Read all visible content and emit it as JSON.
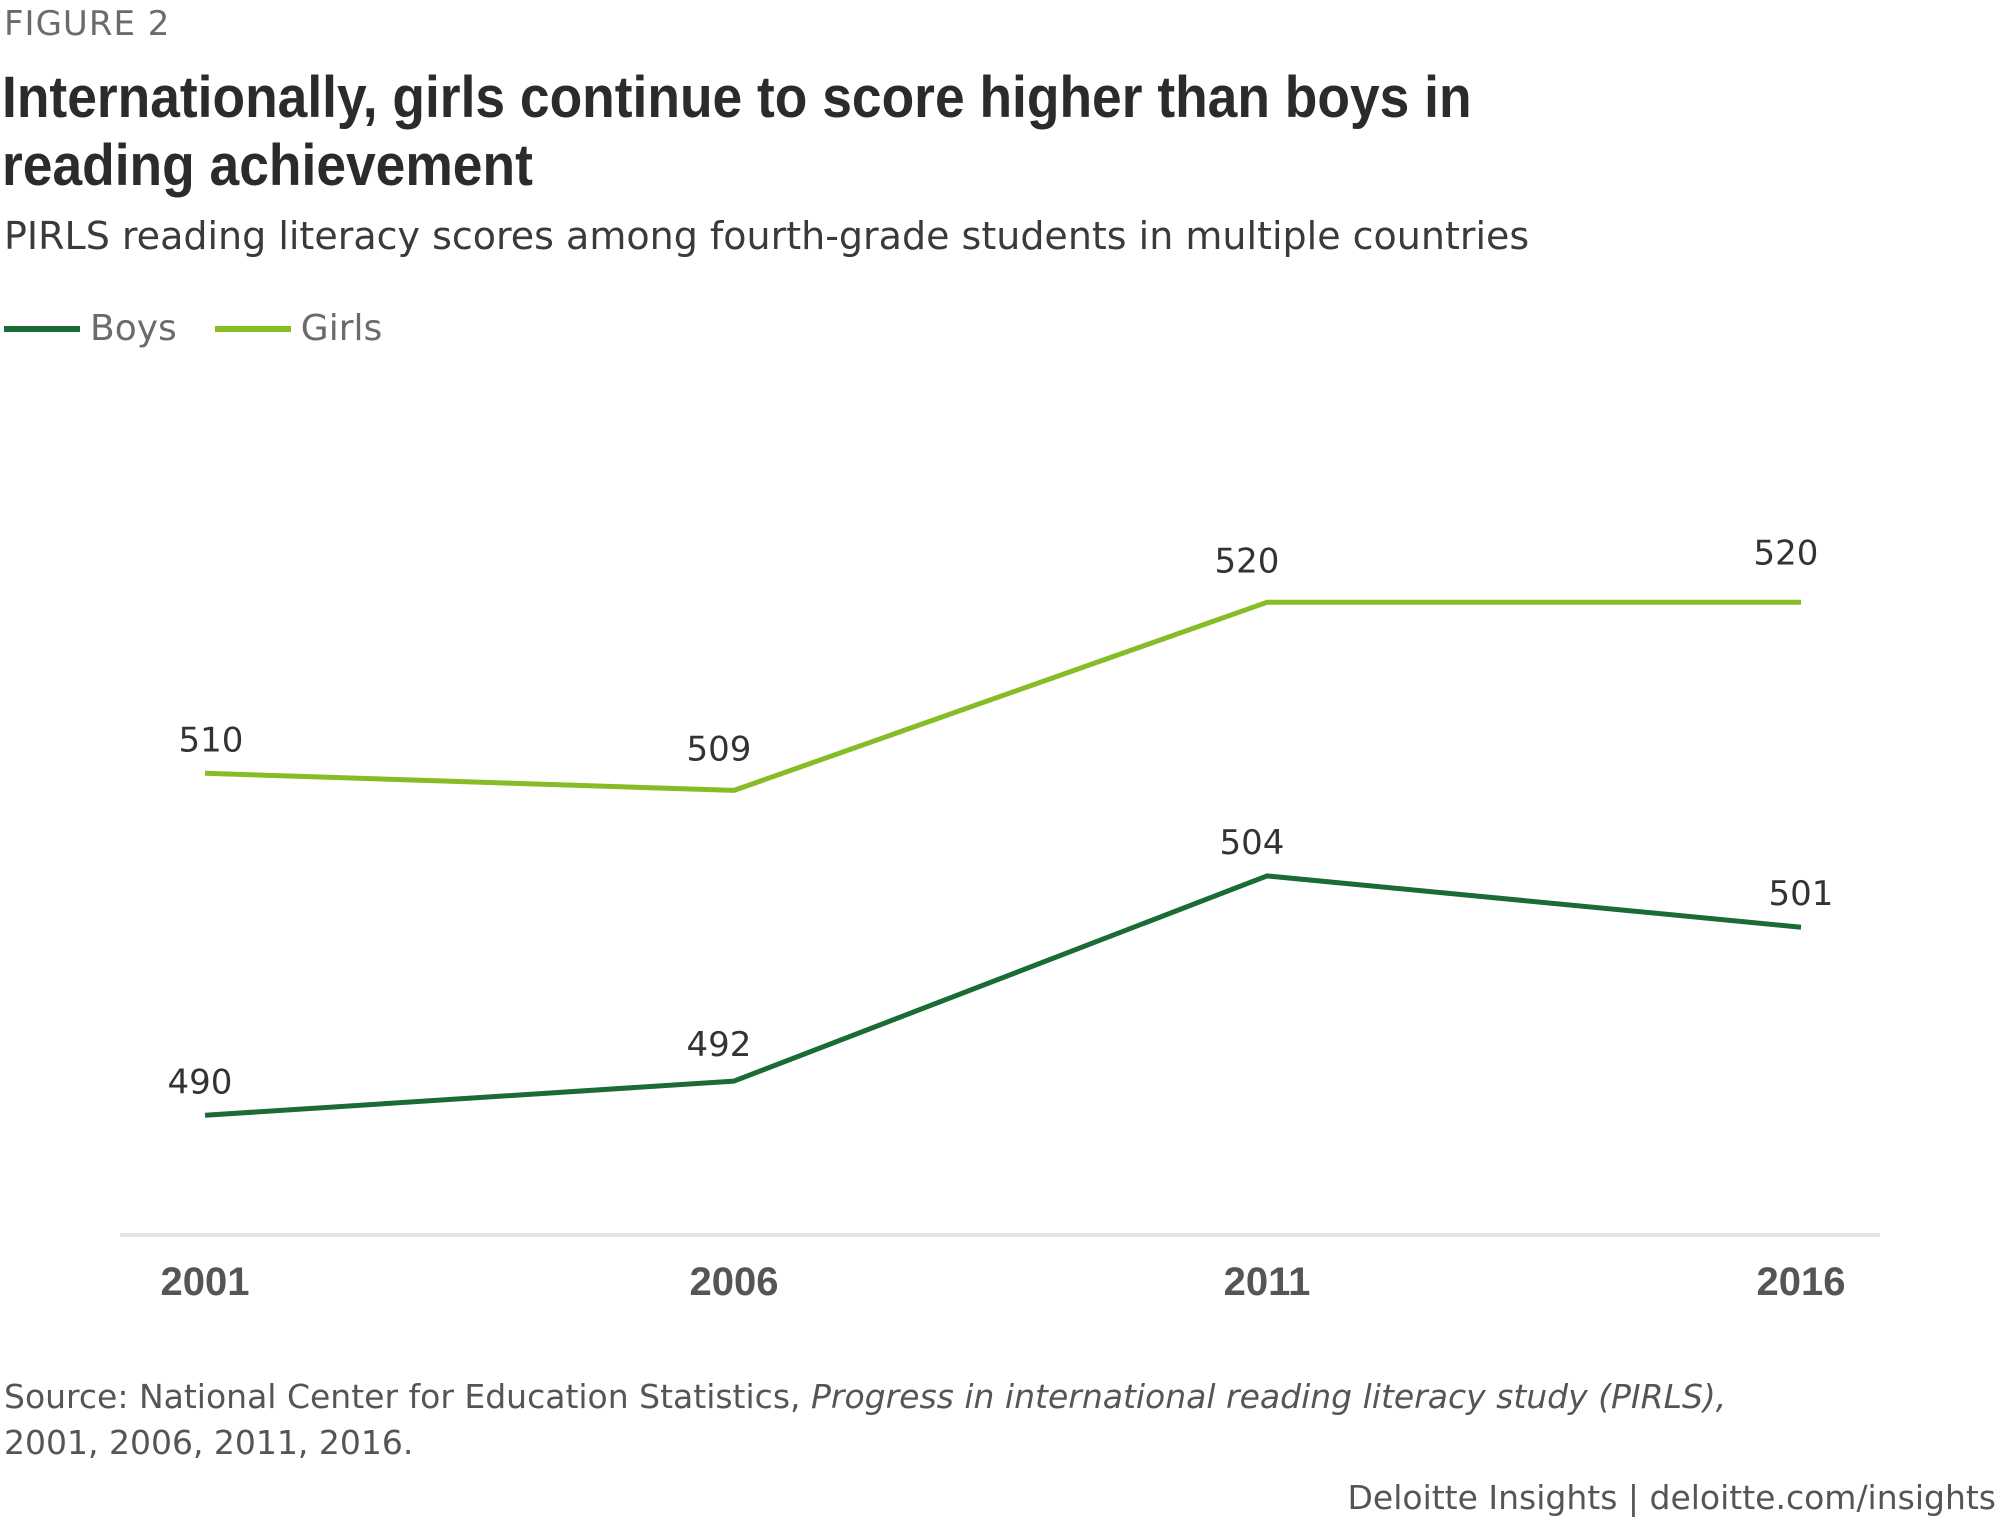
{
  "figure_label": "FIGURE 2",
  "source": {
    "prefix": "Source: National Center for Education Statistics, ",
    "italic": "Progress in international reading literacy study (PIRLS),",
    "suffix": "2001, 2006, 2011, 2016."
  },
  "brand": "Deloitte Insights | deloitte.com/insights",
  "chart_data": {
    "type": "line",
    "title": "Internationally, girls continue to score higher than boys in reading achievement",
    "subtitle": "PIRLS reading literacy scores among fourth-grade students in multiple countries",
    "x": [
      "2001",
      "2006",
      "2011",
      "2016"
    ],
    "series": [
      {
        "name": "Boys",
        "color": "#1a6b35",
        "values": [
          490,
          492,
          504,
          501
        ]
      },
      {
        "name": "Girls",
        "color": "#86bc25",
        "values": [
          510,
          509,
          520,
          520
        ]
      }
    ],
    "ylim": [
      483,
      533
    ],
    "grid": false,
    "legend": "top-left",
    "xlabel": "",
    "ylabel": ""
  }
}
